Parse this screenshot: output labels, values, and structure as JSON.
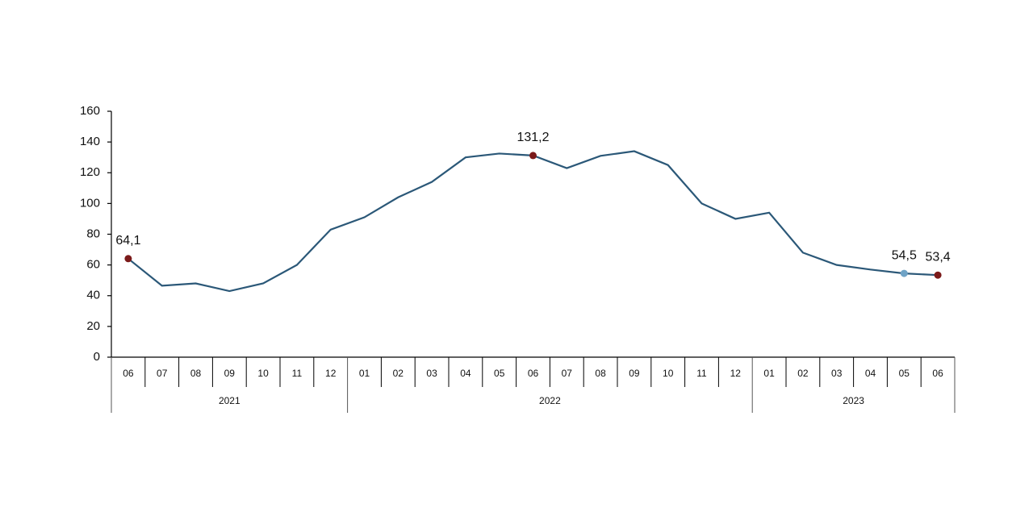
{
  "chart_data": {
    "type": "line",
    "categories": [
      "06",
      "07",
      "08",
      "09",
      "10",
      "11",
      "12",
      "01",
      "02",
      "03",
      "04",
      "05",
      "06",
      "07",
      "08",
      "09",
      "10",
      "11",
      "12",
      "01",
      "02",
      "03",
      "04",
      "05",
      "06"
    ],
    "years": [
      "2021",
      "2021",
      "2021",
      "2021",
      "2021",
      "2021",
      "2021",
      "2022",
      "2022",
      "2022",
      "2022",
      "2022",
      "2022",
      "2022",
      "2022",
      "2022",
      "2022",
      "2022",
      "2022",
      "2023",
      "2023",
      "2023",
      "2023",
      "2023",
      "2023"
    ],
    "values": [
      64.1,
      46.5,
      48,
      43,
      48,
      60,
      83,
      91,
      104,
      114,
      130,
      132.5,
      131.2,
      123,
      131,
      134,
      125,
      100,
      90,
      94,
      68,
      60,
      57,
      54.5,
      53.4
    ],
    "value_labels": [
      "64,1",
      null,
      null,
      null,
      null,
      null,
      null,
      null,
      null,
      null,
      null,
      null,
      "131,2",
      null,
      null,
      null,
      null,
      null,
      null,
      null,
      null,
      null,
      null,
      "54,5",
      "53,4"
    ],
    "markers": [
      "#7b1a1a",
      null,
      null,
      null,
      null,
      null,
      null,
      null,
      null,
      null,
      null,
      null,
      "#7b1a1a",
      null,
      null,
      null,
      null,
      null,
      null,
      null,
      null,
      null,
      null,
      "#6fa3c6",
      "#7b1a1a"
    ],
    "color": "#2b5878",
    "ylim": [
      0,
      160
    ],
    "yticks": [
      0,
      20,
      40,
      60,
      80,
      100,
      120,
      140,
      160
    ],
    "grid": false
  }
}
